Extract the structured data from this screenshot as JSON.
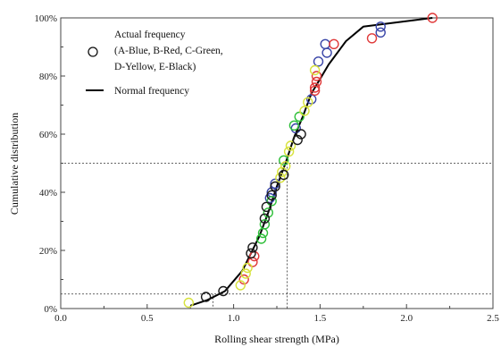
{
  "chart_data": {
    "type": "scatter",
    "xlabel": "Rolling shear strength (MPa)",
    "ylabel": "Cumulative distribution",
    "xlim": [
      0.0,
      2.5
    ],
    "ylim": [
      0,
      100
    ],
    "x_ticks": [
      "0.0",
      "0.5",
      "1.0",
      "1.5",
      "2.0",
      "2.5"
    ],
    "y_ticks": [
      "0%",
      "20%",
      "40%",
      "60%",
      "80%",
      "100%"
    ],
    "y_tick_values": [
      0,
      20,
      40,
      60,
      80,
      100
    ],
    "x_tick_values": [
      0.0,
      0.5,
      1.0,
      1.5,
      2.0,
      2.5
    ],
    "grid": false,
    "legend_position": "top-left",
    "legend": {
      "actual_label_lines": [
        "Actual frequency",
        "(A-Blue, B-Red, C-Green,",
        "D-Yellow, E-Black)"
      ],
      "normal_label": "Normal frequency"
    },
    "reference_lines": {
      "horizontal": [
        5,
        50
      ],
      "vertical_5": 0.88,
      "vertical_50": 1.31
    },
    "series": [
      {
        "kind": "line",
        "color": "#000000",
        "points": [
          [
            0.75,
            1
          ],
          [
            0.85,
            3
          ],
          [
            0.95,
            6
          ],
          [
            1.05,
            13
          ],
          [
            1.1,
            19
          ],
          [
            1.15,
            25
          ],
          [
            1.2,
            33
          ],
          [
            1.25,
            42
          ],
          [
            1.3,
            50
          ],
          [
            1.35,
            59
          ],
          [
            1.4,
            66
          ],
          [
            1.45,
            74
          ],
          [
            1.5,
            79
          ],
          [
            1.55,
            84
          ],
          [
            1.65,
            92
          ],
          [
            1.75,
            97
          ],
          [
            2.15,
            100
          ]
        ]
      },
      {
        "kind": "scatter",
        "color": "#3a46a8",
        "points": [
          [
            1.85,
            97
          ],
          [
            1.85,
            95
          ],
          [
            1.53,
            91
          ],
          [
            1.54,
            88
          ],
          [
            1.49,
            85
          ],
          [
            1.45,
            72
          ],
          [
            1.36,
            62
          ],
          [
            1.24,
            43
          ],
          [
            1.22,
            40
          ],
          [
            1.21,
            38
          ]
        ]
      },
      {
        "kind": "scatter",
        "color": "#e03a3a",
        "points": [
          [
            2.15,
            100
          ],
          [
            1.8,
            93
          ],
          [
            1.58,
            91
          ],
          [
            1.48,
            80
          ],
          [
            1.48,
            78
          ],
          [
            1.47,
            76
          ],
          [
            1.47,
            75
          ],
          [
            1.12,
            18
          ],
          [
            1.11,
            16
          ],
          [
            1.06,
            10
          ]
        ]
      },
      {
        "kind": "scatter",
        "color": "#2fbf3a",
        "points": [
          [
            1.38,
            66
          ],
          [
            1.35,
            63
          ],
          [
            1.29,
            51
          ],
          [
            1.22,
            37
          ],
          [
            1.2,
            33
          ],
          [
            1.18,
            29
          ],
          [
            1.17,
            26
          ],
          [
            1.16,
            24
          ]
        ]
      },
      {
        "kind": "scatter",
        "color": "#d7e23c",
        "points": [
          [
            1.47,
            82
          ],
          [
            1.43,
            71
          ],
          [
            1.41,
            68
          ],
          [
            1.33,
            56
          ],
          [
            1.32,
            54
          ],
          [
            1.3,
            49
          ],
          [
            1.28,
            47
          ],
          [
            1.27,
            45
          ],
          [
            1.08,
            14
          ],
          [
            1.07,
            12
          ],
          [
            1.04,
            8
          ],
          [
            0.74,
            2
          ]
        ]
      },
      {
        "kind": "scatter",
        "color": "#1a1a1a",
        "points": [
          [
            1.39,
            60
          ],
          [
            1.37,
            58
          ],
          [
            1.29,
            46
          ],
          [
            1.24,
            42
          ],
          [
            1.22,
            39
          ],
          [
            1.19,
            35
          ],
          [
            1.18,
            31
          ],
          [
            1.11,
            21
          ],
          [
            1.1,
            19
          ],
          [
            0.94,
            6
          ],
          [
            0.84,
            4
          ]
        ]
      }
    ]
  }
}
